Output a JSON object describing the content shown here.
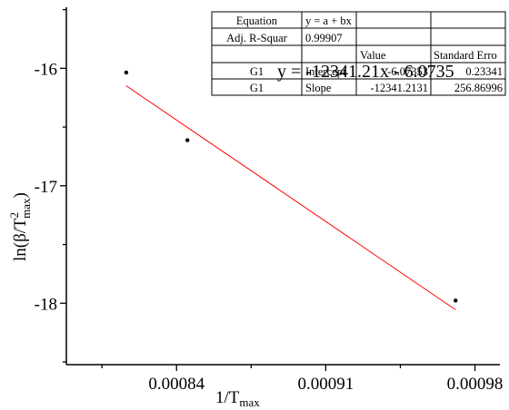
{
  "chart_data": {
    "type": "scatter",
    "xlim": [
      0.0007883,
      0.0009917
    ],
    "ylim": [
      -18.523,
      -15.48
    ],
    "x_ticks": [
      0.00084,
      0.00091,
      0.00098
    ],
    "x_tick_labels": [
      "0.00084",
      "0.00091",
      "0.00098"
    ],
    "y_ticks": [
      -18,
      -17,
      -16
    ],
    "y_tick_labels": [
      "-18",
      "-17",
      "-16"
    ],
    "xlabel": {
      "main": "1/T",
      "sub": "max"
    },
    "ylabel": {
      "prefix": "ln(β/T",
      "sup": "2",
      "sub": "max",
      "suffix": ")"
    },
    "points": [
      {
        "x": 0.0008164,
        "y": -16.036
      },
      {
        "x": 0.0008451,
        "y": -16.612
      },
      {
        "x": 0.0009709,
        "y": -17.977
      }
    ],
    "fit_line": {
      "x": [
        0.0008164,
        0.0009709
      ],
      "color": "#ff0000",
      "slope": -12341.2131,
      "intercept": -6.07353
    },
    "fit_equation": "y = -12341.21x - 6.0735",
    "grid": false,
    "point_color": "#000000",
    "stats_table": {
      "rows": [
        [
          "Equation",
          "y = a + bx",
          "",
          ""
        ],
        [
          "Adj. R-Squar",
          "0.99907",
          "",
          ""
        ],
        [
          "",
          "",
          "Value",
          "Standard Erro"
        ],
        [
          "G1",
          "Intercept",
          "-6.07353",
          "0.23341"
        ],
        [
          "G1",
          "Slope",
          "-12341.2131",
          "256.86996"
        ]
      ]
    }
  }
}
